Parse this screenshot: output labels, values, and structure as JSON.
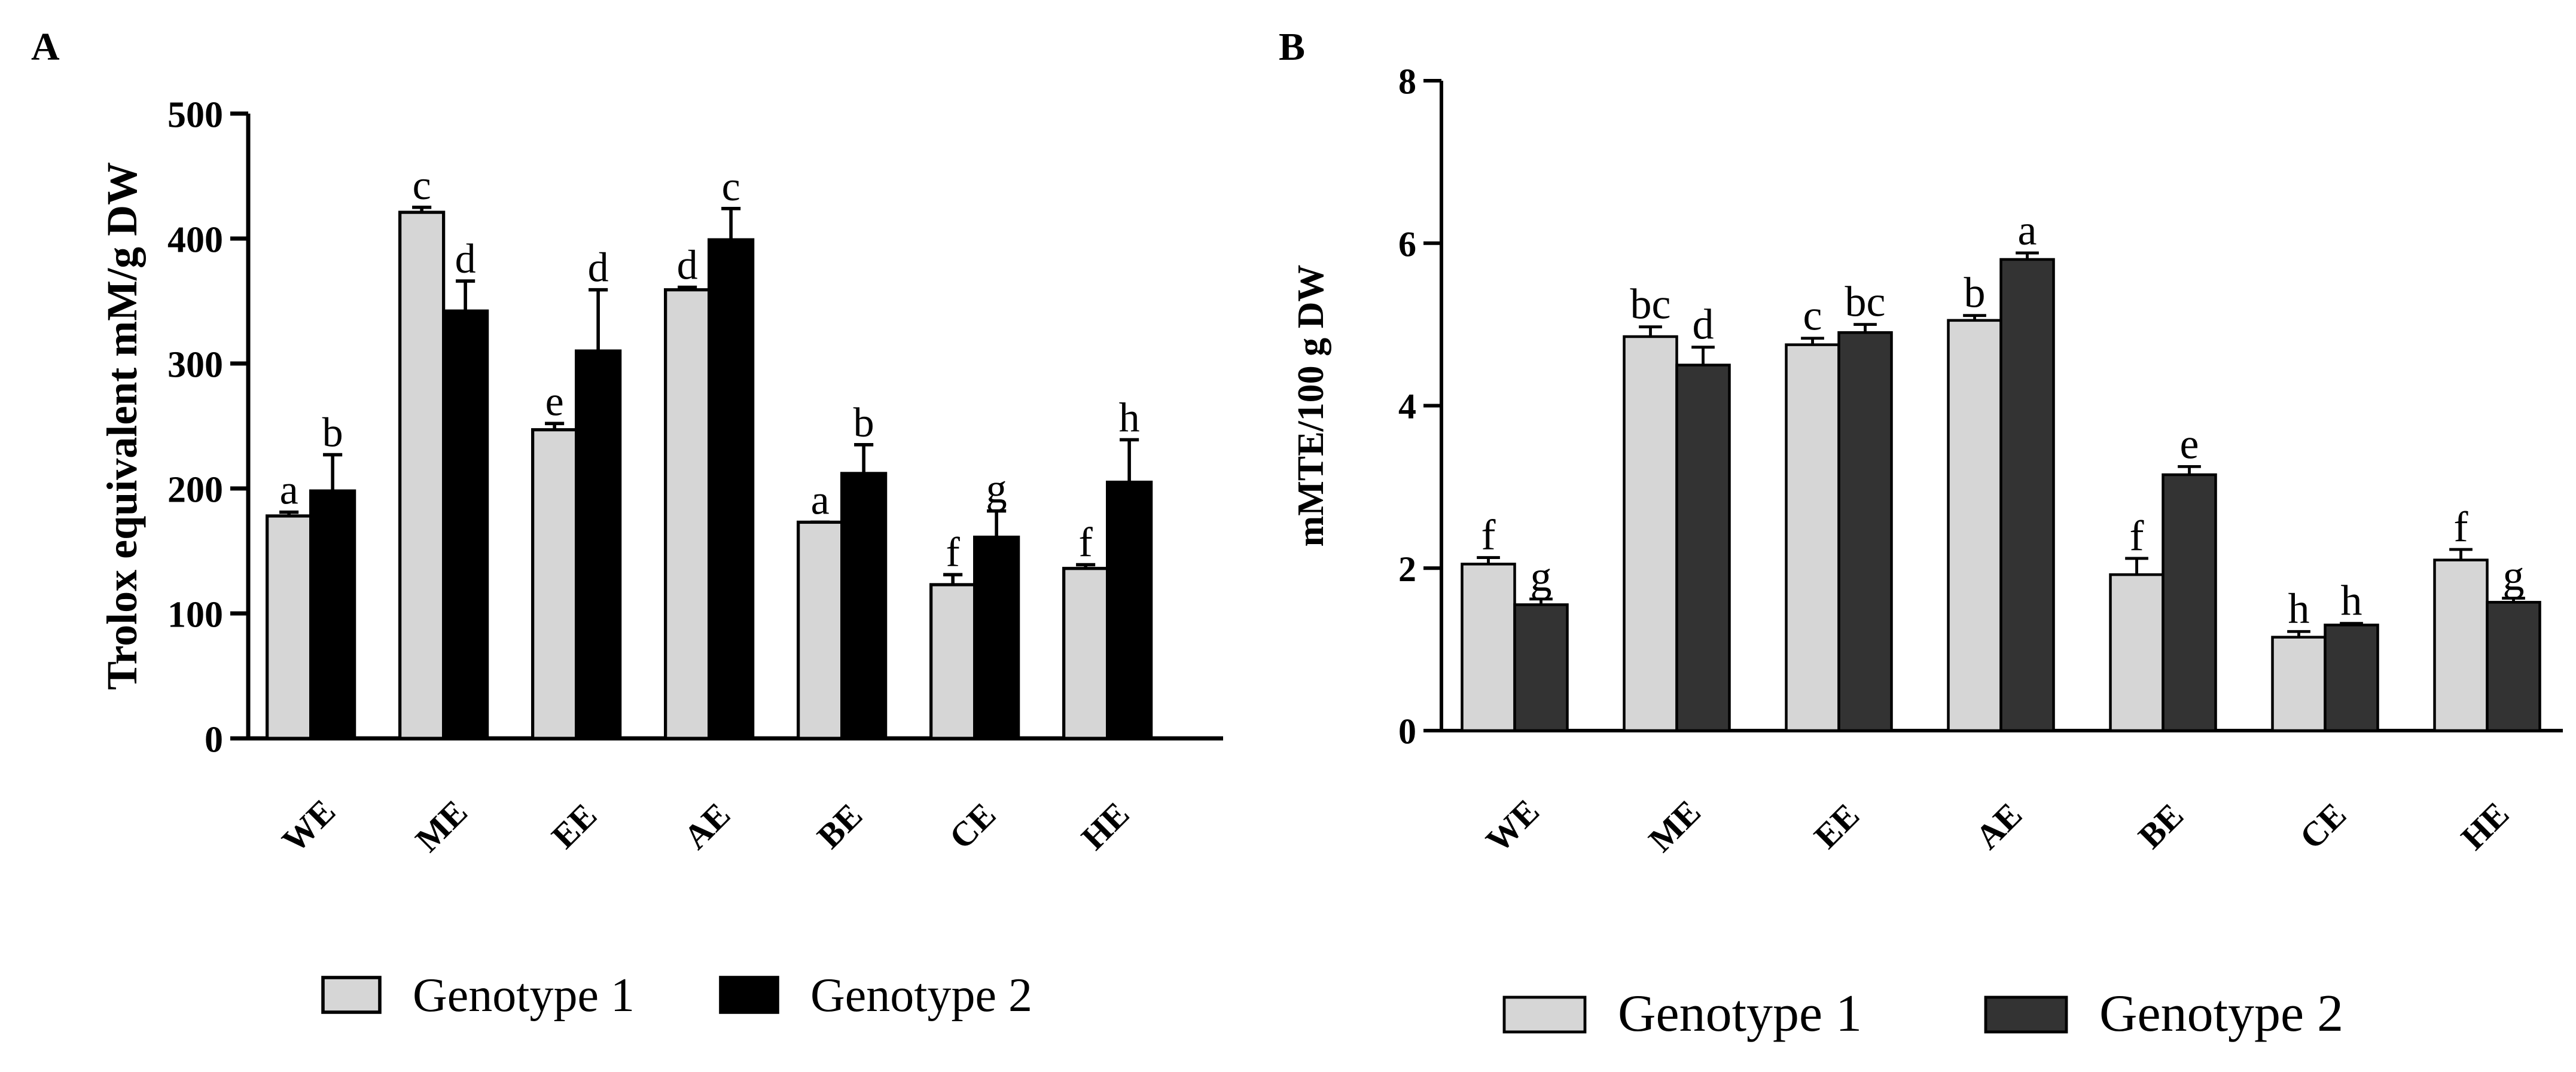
{
  "chart_data": [
    {
      "panel_label": "A",
      "type": "bar",
      "title": "",
      "xlabel": "",
      "ylabel": "Trolox equivalent mM/g DW",
      "ylim": [
        0,
        500
      ],
      "yticks": [
        "0",
        "100",
        "200",
        "300",
        "400",
        "500"
      ],
      "categories": [
        "WE",
        "ME",
        "EE",
        "AE",
        "BE",
        "CE",
        "HE"
      ],
      "series": [
        {
          "name": "Genotype 1",
          "color": "#d6d6d6",
          "values": [
            178,
            421,
            247,
            359,
            173,
            123,
            136
          ],
          "errors": [
            3,
            4,
            5,
            2,
            0,
            8,
            3
          ],
          "letters": [
            "a",
            "c",
            "e",
            "d",
            "a",
            "f",
            "f"
          ]
        },
        {
          "name": "Genotype 2",
          "color": "#000000",
          "values": [
            198,
            342,
            310,
            399,
            212,
            161,
            205
          ],
          "errors": [
            29,
            24,
            49,
            25,
            23,
            21,
            34
          ],
          "letters": [
            "b",
            "d",
            "d",
            "c",
            "b",
            "g",
            "h"
          ]
        }
      ],
      "legend": [
        "Genotype 1",
        "Genotype 2"
      ],
      "legend_position": "bottom"
    },
    {
      "panel_label": "B",
      "type": "bar",
      "title": "",
      "xlabel": "",
      "ylabel": "mMTE/100 g DW",
      "ylim": [
        0,
        8
      ],
      "yticks": [
        "0",
        "2",
        "4",
        "6",
        "8"
      ],
      "categories": [
        "WE",
        "ME",
        "EE",
        "AE",
        "BE",
        "CE",
        "HE"
      ],
      "series": [
        {
          "name": "Genotype 1",
          "color": "#d6d6d6",
          "values": [
            2.05,
            4.85,
            4.75,
            5.05,
            1.92,
            1.15,
            2.1
          ],
          "errors": [
            0.08,
            0.12,
            0.08,
            0.06,
            0.2,
            0.07,
            0.13
          ],
          "letters": [
            "f",
            "bc",
            "c",
            "b",
            "f",
            "h",
            "f"
          ]
        },
        {
          "name": "Genotype 2",
          "color": "#333333",
          "values": [
            1.55,
            4.5,
            4.9,
            5.8,
            3.15,
            1.3,
            1.58
          ],
          "errors": [
            0.07,
            0.22,
            0.1,
            0.08,
            0.1,
            0.02,
            0.05
          ],
          "letters": [
            "g",
            "d",
            "bc",
            "a",
            "e",
            "h",
            "g"
          ]
        }
      ],
      "legend": [
        "Genotype 1",
        "Genotype 2"
      ],
      "legend_position": "bottom"
    }
  ]
}
